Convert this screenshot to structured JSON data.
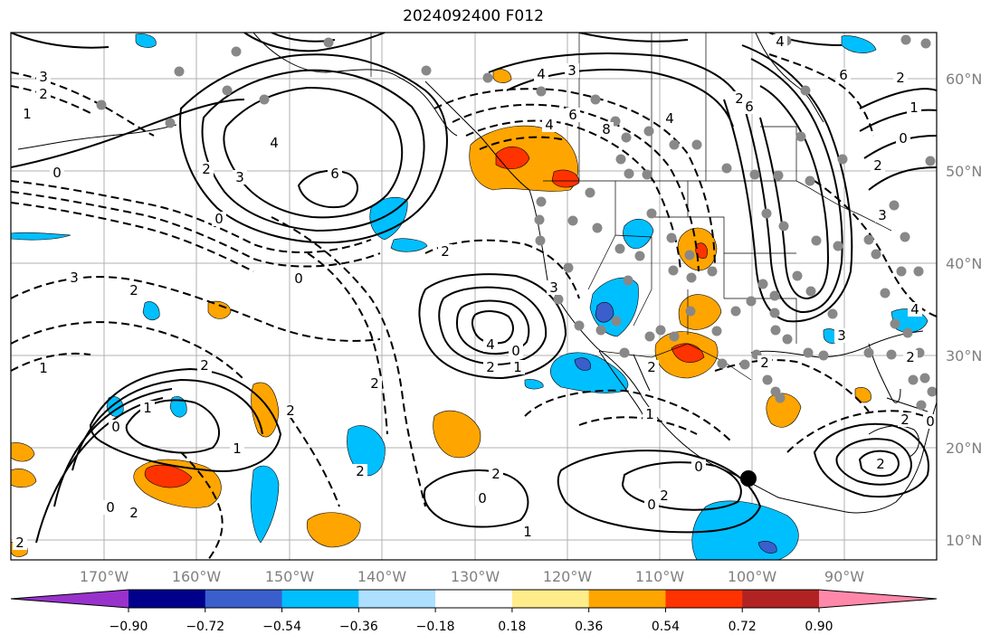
{
  "title": "2024092400 F012",
  "map": {
    "lat_labels": [
      "60°N",
      "50°N",
      "40°N",
      "30°N",
      "20°N",
      "10°N"
    ],
    "lon_labels": [
      "170°W",
      "160°W",
      "150°W",
      "140°W",
      "130°W",
      "120°W",
      "110°W",
      "100°W",
      "90°W"
    ],
    "gridlines": true,
    "station_marker_color": "#888888",
    "contour_color": "#000000",
    "contour_labels": [
      "3",
      "2",
      "1",
      "0",
      "4",
      "6",
      "3",
      "2",
      "0",
      "2",
      "3",
      "4",
      "6",
      "8",
      "4",
      "6",
      "2",
      "1",
      "0",
      "2",
      "3",
      "4",
      "2",
      "3",
      "3",
      "2",
      "1",
      "0",
      "2",
      "4",
      "0",
      "2",
      "1",
      "2",
      "0",
      "1",
      "0",
      "2",
      "1",
      "2",
      "2",
      "2",
      "0",
      "1",
      "0",
      "2",
      "0",
      "2",
      "1",
      "2",
      "0",
      "2",
      "2",
      "3",
      "2",
      "2",
      "6",
      "4",
      "4"
    ]
  },
  "colorbar": {
    "tick_labels": [
      "−0.90",
      "−0.72",
      "−0.54",
      "−0.36",
      "−0.18",
      "0.18",
      "0.36",
      "0.54",
      "0.72",
      "0.90"
    ],
    "colors": [
      "#9932CC",
      "#00008B",
      "#3A5FCD",
      "#00BFFF",
      "#ADDFFF",
      "#FFFFFF",
      "#FFEC8B",
      "#FFA500",
      "#FF3300",
      "#B22222",
      "#FF88AA"
    ]
  }
}
